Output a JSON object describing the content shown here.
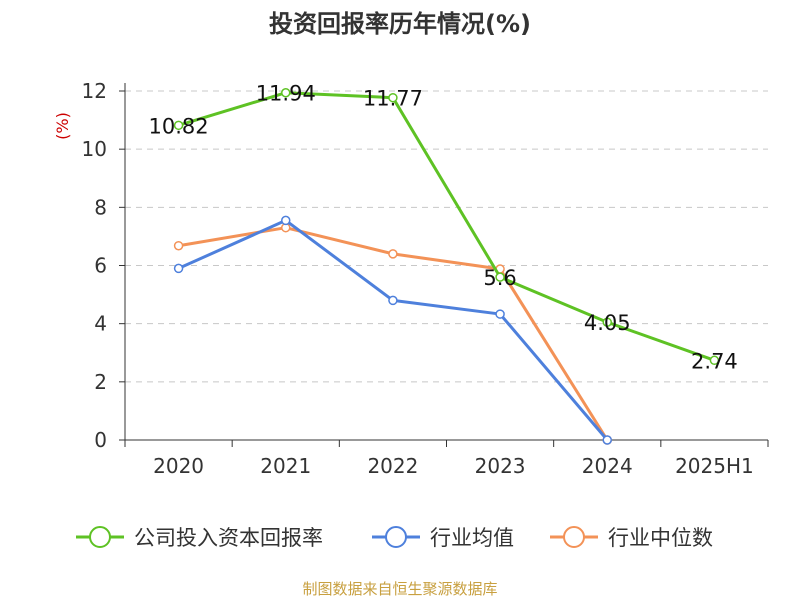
{
  "colors": {
    "company": "#5ec224",
    "industry_avg": "#4e80dc",
    "industry_median": "#f39257"
  },
  "chart_data": {
    "type": "line",
    "title": "投资回报率历年情况(%)",
    "ylabel": "(%)",
    "categories": [
      "2020",
      "2021",
      "2022",
      "2023",
      "2024",
      "2025H1"
    ],
    "ylim": [
      0,
      12
    ],
    "yticks": [
      0,
      2,
      4,
      6,
      8,
      10,
      12
    ],
    "grid": true,
    "legend_position": "bottom",
    "series": [
      {
        "name": "公司投入资本回报率",
        "color": "#5ec224",
        "values": [
          10.82,
          11.94,
          11.77,
          5.6,
          4.05,
          2.74
        ],
        "labels": [
          "10.82",
          "11.94",
          "11.77",
          "5.6",
          "4.05",
          "2.74"
        ]
      },
      {
        "name": "行业均值",
        "color": "#4e80dc",
        "values": [
          5.9,
          7.55,
          4.8,
          4.33,
          0.0,
          null
        ],
        "labels": null
      },
      {
        "name": "行业中位数",
        "color": "#f39257",
        "values": [
          6.68,
          7.3,
          6.4,
          5.88,
          0.0,
          null
        ],
        "labels": null
      }
    ],
    "source": "制图数据来自恒生聚源数据库"
  }
}
